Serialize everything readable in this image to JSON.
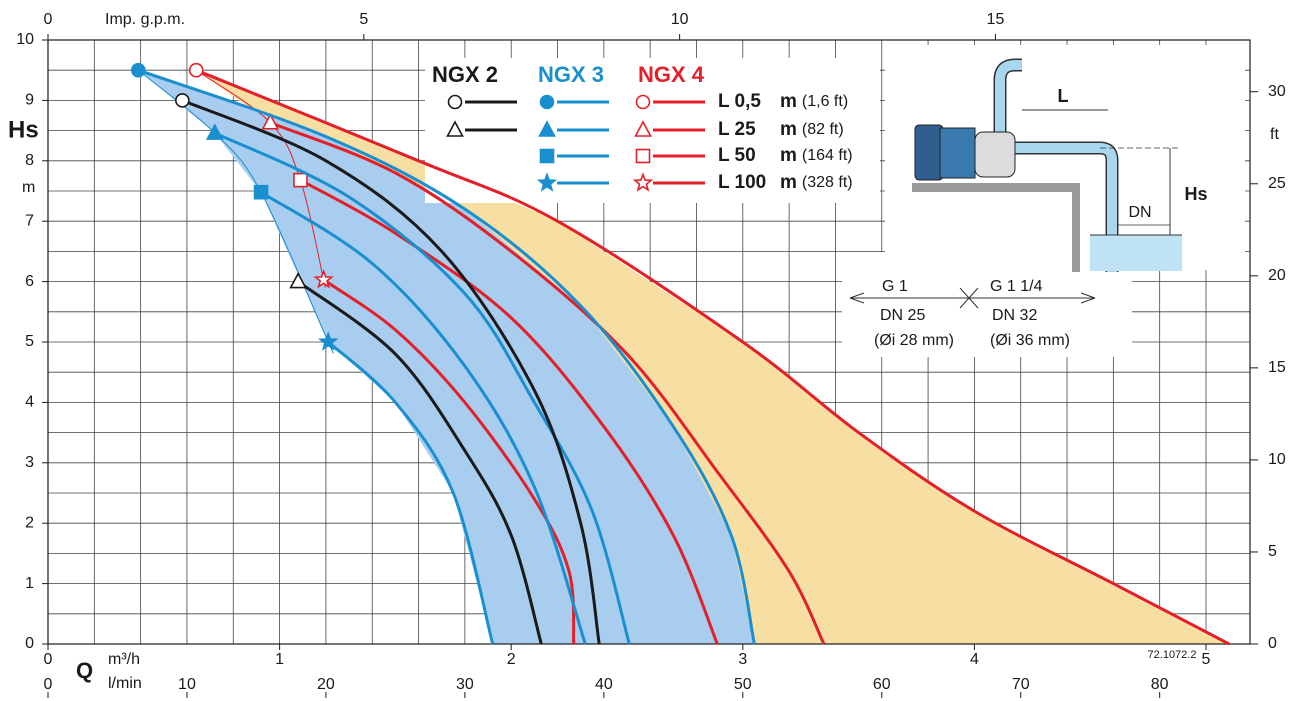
{
  "chart_data": {
    "type": "line",
    "xlim": [
      0,
      5.19
    ],
    "xticks": [
      0,
      1,
      2,
      3,
      4,
      5
    ],
    "x_unit": "m³/h",
    "x_symbol": "Q",
    "ylim": [
      0,
      10
    ],
    "yticks": [
      0,
      1,
      2,
      3,
      4,
      5,
      6,
      7,
      8,
      9,
      10
    ],
    "y_label": "Hs",
    "y_unit": "m",
    "y2lim": [
      0,
      32.81
    ],
    "y2ticks": [
      0,
      5,
      10,
      15,
      20,
      25,
      30
    ],
    "y2_unit": "ft",
    "x2": {
      "label": "l/min",
      "lim": [
        0,
        86.5
      ],
      "ticks": [
        0,
        10,
        20,
        30,
        40,
        50,
        60,
        70,
        80
      ]
    },
    "x3": {
      "label": "Imp. g.p.m.",
      "lim": [
        0,
        19.03
      ],
      "ticks": [
        0,
        5,
        10,
        15
      ]
    },
    "grid": true,
    "grid_step": {
      "x": 0.2,
      "y": 0.5
    },
    "legend": {
      "groups": [
        "NGX 2",
        "NGX 3",
        "NGX 4"
      ],
      "rows": [
        [
          "L 0,5",
          "m",
          "(1,6 ft)"
        ],
        [
          "L 25",
          "m",
          "(82   ft)"
        ],
        [
          "L 50",
          "m",
          "(164 ft)"
        ],
        [
          "L 100",
          "m",
          "(328 ft)"
        ]
      ]
    },
    "series": [
      {
        "model": "NGX 4",
        "length": "L 0,5",
        "color": "#e3202a",
        "marker": "circle-open",
        "x": [
          0.64,
          1.6,
          2.2,
          3.0,
          3.5,
          4.0,
          4.6,
          5.1
        ],
        "values": [
          9.5,
          8.0,
          7.0,
          5.0,
          3.5,
          2.2,
          1.0,
          0
        ]
      },
      {
        "model": "NGX 4",
        "length": "L 25",
        "color": "#e3202a",
        "marker": "triangle-open",
        "x": [
          0.96,
          1.5,
          2.0,
          2.5,
          2.9,
          3.2,
          3.35
        ],
        "values": [
          8.63,
          7.8,
          6.5,
          4.8,
          2.8,
          1.2,
          0
        ]
      },
      {
        "model": "NGX 4",
        "length": "L 50",
        "color": "#e3202a",
        "marker": "square-open",
        "x": [
          1.09,
          1.5,
          2.0,
          2.4,
          2.7,
          2.89
        ],
        "values": [
          7.68,
          6.8,
          5.4,
          3.6,
          1.8,
          0
        ]
      },
      {
        "model": "NGX 4",
        "length": "L 100",
        "color": "#e3202a",
        "marker": "star-open",
        "x": [
          1.19,
          1.5,
          1.8,
          2.1,
          2.25,
          2.27
        ],
        "values": [
          6.03,
          5.2,
          4.0,
          2.4,
          1.2,
          0
        ]
      },
      {
        "model": "NGX 3",
        "length": "L 0,5",
        "color": "#1a8fd0",
        "marker": "circle",
        "x": [
          0.39,
          1.2,
          1.8,
          2.3,
          2.7,
          2.95,
          3.05
        ],
        "values": [
          9.5,
          8.4,
          7.2,
          5.6,
          3.6,
          1.8,
          0
        ]
      },
      {
        "model": "NGX 3",
        "length": "L 25",
        "color": "#1a8fd0",
        "marker": "triangle",
        "x": [
          0.72,
          1.3,
          1.8,
          2.1,
          2.35,
          2.51
        ],
        "values": [
          8.46,
          7.4,
          5.8,
          4.0,
          2.2,
          0
        ]
      },
      {
        "model": "NGX 3",
        "length": "L 50",
        "color": "#1a8fd0",
        "marker": "square",
        "x": [
          0.92,
          1.4,
          1.8,
          2.1,
          2.32
        ],
        "values": [
          7.48,
          6.3,
          4.6,
          2.6,
          0
        ]
      },
      {
        "model": "NGX 3",
        "length": "L 100",
        "color": "#1a8fd0",
        "marker": "star",
        "x": [
          1.21,
          1.5,
          1.75,
          1.92
        ],
        "values": [
          5.0,
          4.0,
          2.5,
          0
        ]
      },
      {
        "model": "NGX 2",
        "length": "L 0,5",
        "color": "#1a1a1a",
        "marker": "circle-open",
        "x": [
          0.58,
          1.2,
          1.7,
          2.1,
          2.3,
          2.38
        ],
        "values": [
          9.0,
          8.0,
          6.5,
          4.2,
          2.0,
          0
        ]
      },
      {
        "model": "NGX 2",
        "length": "L 25",
        "color": "#1a1a1a",
        "marker": "triangle-open",
        "x": [
          1.08,
          1.5,
          1.8,
          2.0,
          2.13
        ],
        "values": [
          6.0,
          4.8,
          3.2,
          1.8,
          0
        ]
      }
    ]
  },
  "diagram": {
    "L": "L",
    "Hs": "Hs",
    "DN": "DN",
    "left_thread": "G 1",
    "right_thread": "G 1 1/4",
    "left_dn": "DN 25",
    "right_dn": "DN 32",
    "left_di": "(Øi 28 mm)",
    "right_di": "(Øi 36 mm)",
    "code": "72.1072.2"
  }
}
